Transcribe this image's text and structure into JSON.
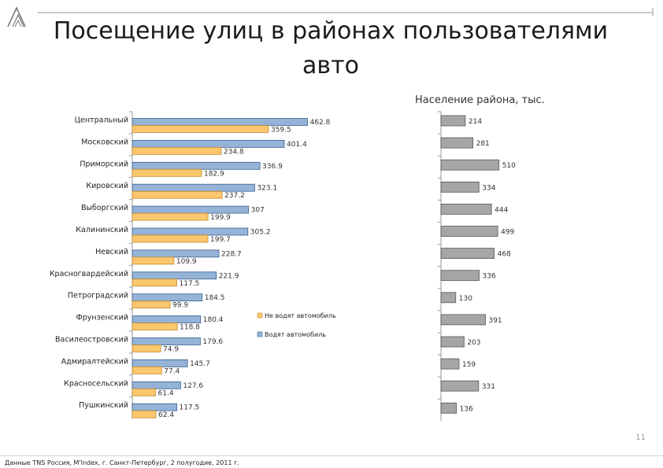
{
  "header": {
    "title": "Посещение улиц в районах пользователями авто"
  },
  "chart_data": [
    {
      "type": "bar",
      "orientation": "horizontal",
      "categories": [
        "Центральный",
        "Московский",
        "Приморский",
        "Кировский",
        "Выборгский",
        "Калининский",
        "Невский",
        "Красногвардейский",
        "Петроградский",
        "Фрунзенский",
        "Василеостровский",
        "Адмиралтейский",
        "Красносельский",
        "Пушкинский"
      ],
      "series": [
        {
          "name": "Водят автомобиль",
          "color": "#95b3d7",
          "values": [
            462.8,
            401.4,
            336.9,
            323.1,
            307,
            305.2,
            228.7,
            221.9,
            184.5,
            180.4,
            179.6,
            145.7,
            127.6,
            117.5
          ],
          "labels": [
            "462.8",
            "401.4",
            "336.9",
            "323.1",
            "307",
            "305.2",
            "228.7",
            "221.9",
            "184.5",
            "180.4",
            "179.6",
            "145.7",
            "127.6",
            "117.5"
          ]
        },
        {
          "name": "Не водят автомобиль",
          "color": "#fac66e",
          "values": [
            359.5,
            234.8,
            182.9,
            237.2,
            199.9,
            199.7,
            109.9,
            117.5,
            99.9,
            118.8,
            74.9,
            77.4,
            61.4,
            62.4
          ],
          "labels": [
            "359.5",
            "234.8",
            "182.9",
            "237.2",
            "199.9",
            "199.7",
            "109.9",
            "117.5",
            "99.9",
            "118.8",
            "74.9",
            "77.4",
            "61.4",
            "62.4"
          ]
        }
      ],
      "legend": [
        "Не водят автомобиль",
        "Водят автомобиль"
      ],
      "legend_placement": "right",
      "grid": false
    },
    {
      "type": "bar",
      "orientation": "horizontal",
      "title": "Население района, тыс.",
      "categories": [
        "Центральный",
        "Московский",
        "Приморский",
        "Кировский",
        "Выборгский",
        "Калининский",
        "Невский",
        "Красногвардейский",
        "Петроградский",
        "Фрунзенский",
        "Василеостровский",
        "Адмиралтейский",
        "Красносельский",
        "Пушкинский"
      ],
      "series": [
        {
          "color": "#a6a6a6",
          "values": [
            214,
            281,
            510,
            334,
            444,
            499,
            468,
            336,
            130,
            391,
            203,
            159,
            331,
            136
          ],
          "labels": [
            "214",
            "281",
            "510",
            "334",
            "444",
            "499",
            "468",
            "336",
            "130",
            "391",
            "203",
            "159",
            "331",
            "136"
          ]
        }
      ],
      "grid": false
    }
  ],
  "page_number": "11",
  "footer": {
    "source": "Данные TNS Россия, M'Index, г. Санкт-Петербург,  2 полугодие, 2011 г."
  }
}
